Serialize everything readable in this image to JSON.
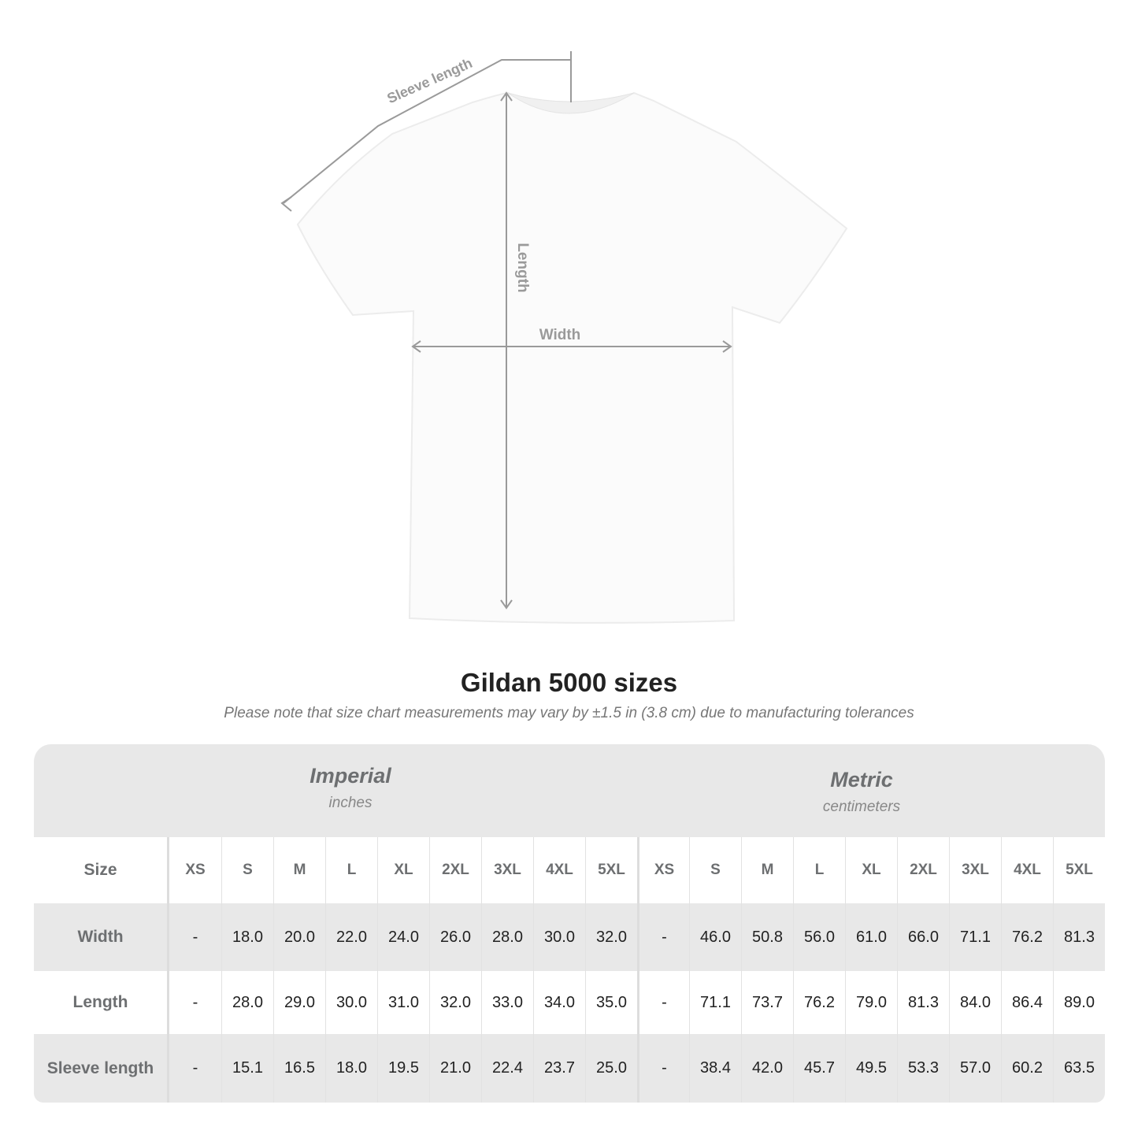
{
  "diagram": {
    "labels": {
      "sleeve": "Sleeve length",
      "length": "Length",
      "width": "Width"
    },
    "colors": {
      "measure_line": "#9a9a9a",
      "shirt": "#ffffff"
    }
  },
  "title": "Gildan 5000 sizes",
  "subtitle": "Please note that size chart measurements may vary by ±1.5 in (3.8 cm) due to manufacturing tolerances",
  "table": {
    "imperial": {
      "name": "Imperial",
      "unit": "inches"
    },
    "metric": {
      "name": "Metric",
      "unit": "centimeters"
    },
    "size_label": "Size",
    "sizes": [
      "XS",
      "S",
      "M",
      "L",
      "XL",
      "2XL",
      "3XL",
      "4XL",
      "5XL"
    ],
    "rows": [
      {
        "label": "Width",
        "imperial": [
          "-",
          "18.0",
          "20.0",
          "22.0",
          "24.0",
          "26.0",
          "28.0",
          "30.0",
          "32.0"
        ],
        "metric": [
          "-",
          "46.0",
          "50.8",
          "56.0",
          "61.0",
          "66.0",
          "71.1",
          "76.2",
          "81.3"
        ]
      },
      {
        "label": "Length",
        "imperial": [
          "-",
          "28.0",
          "29.0",
          "30.0",
          "31.0",
          "32.0",
          "33.0",
          "34.0",
          "35.0"
        ],
        "metric": [
          "-",
          "71.1",
          "73.7",
          "76.2",
          "79.0",
          "81.3",
          "84.0",
          "86.4",
          "89.0"
        ]
      },
      {
        "label": "Sleeve length",
        "imperial": [
          "-",
          "15.1",
          "16.5",
          "18.0",
          "19.5",
          "21.0",
          "22.4",
          "23.7",
          "25.0"
        ],
        "metric": [
          "-",
          "38.4",
          "42.0",
          "45.7",
          "49.5",
          "53.3",
          "57.0",
          "60.2",
          "63.5"
        ]
      }
    ]
  }
}
